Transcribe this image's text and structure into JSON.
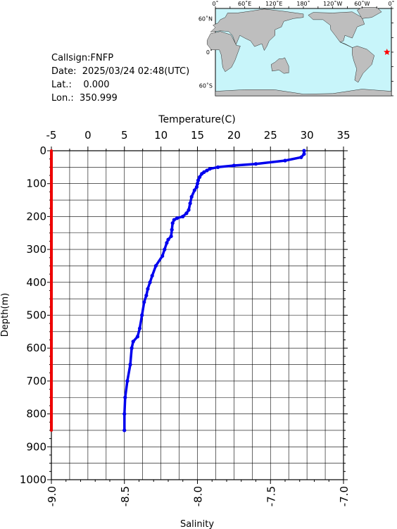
{
  "info": {
    "callsign": "Callsign:FNFP",
    "date": "Date:  2025/03/24 02:48(UTC)",
    "lat": "Lat.:    0.000",
    "lon": "Lon.:  350.999"
  },
  "map": {
    "top_labels": [
      "0˚",
      "60˚E",
      "120˚E",
      "180˚",
      "120˚W",
      "60˚W",
      "0˚"
    ],
    "left_labels": [
      "60˚N",
      "0˚",
      "60˚S"
    ],
    "station_lon": 350.999,
    "station_lat": 0.0,
    "colors": {
      "ocean": "#c8f5fa",
      "land": "#bebebe",
      "marker": "#ff0000"
    }
  },
  "chart_data": {
    "type": "line",
    "xlabel_top": "Temperature(C)",
    "xlabel_bottom": "Salinity",
    "ylabel": "Depth(m)",
    "temperature_ticks": [
      "-5",
      "0",
      "5",
      "10",
      "15",
      "20",
      "25",
      "30",
      "35"
    ],
    "salinity_ticks": [
      "-9.0",
      "-8.5",
      "-8.0",
      "-7.5",
      "-7.0"
    ],
    "depth_ticks": [
      "0",
      "100",
      "200",
      "300",
      "400",
      "500",
      "600",
      "700",
      "800",
      "900",
      "1000"
    ],
    "temperature_range": [
      -5,
      35
    ],
    "salinity_range": [
      -9.0,
      -7.0
    ],
    "depth_range": [
      0,
      1000
    ],
    "grid": true,
    "series": [
      {
        "name": "Temperature(C)",
        "color": "#0000ee",
        "depth": [
          0,
          10,
          20,
          30,
          40,
          45,
          50,
          55,
          60,
          65,
          70,
          80,
          90,
          100,
          110,
          120,
          140,
          160,
          180,
          190,
          200,
          205,
          210,
          220,
          240,
          260,
          270,
          280,
          300,
          320,
          350,
          380,
          400,
          420,
          440,
          460,
          500,
          540,
          565,
          580,
          600,
          650,
          700,
          750,
          800,
          850
        ],
        "values": [
          29.6,
          29.6,
          29.2,
          27.0,
          23.0,
          20.0,
          17.8,
          16.7,
          16.3,
          15.9,
          15.6,
          15.3,
          15.1,
          15.0,
          14.9,
          14.6,
          14.2,
          14.0,
          13.8,
          13.5,
          13.0,
          12.2,
          11.8,
          11.6,
          11.5,
          11.4,
          11.0,
          10.8,
          10.5,
          10.2,
          9.3,
          8.8,
          8.5,
          8.2,
          8.0,
          7.7,
          7.4,
          7.1,
          6.8,
          6.2,
          6.0,
          5.8,
          5.4,
          5.1,
          5.0,
          5.0
        ]
      },
      {
        "name": "Salinity",
        "color": "#ee0000",
        "depth": [
          0,
          100,
          200,
          300,
          400,
          500,
          600,
          700,
          800,
          850
        ],
        "values": [
          -9.0,
          -9.0,
          -9.0,
          -9.0,
          -9.0,
          -9.0,
          -9.0,
          -9.0,
          -9.0,
          -9.0
        ]
      }
    ]
  }
}
